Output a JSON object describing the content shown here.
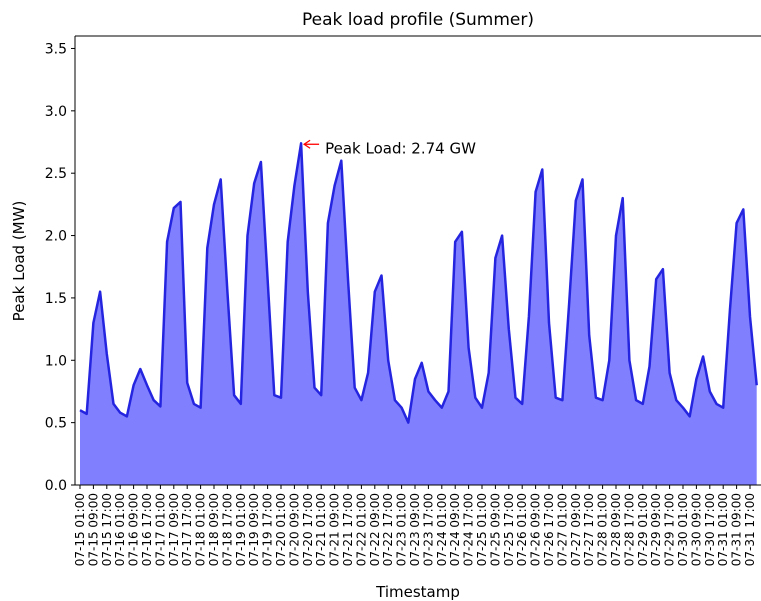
{
  "chart_data": {
    "type": "area",
    "title": "Peak load profile (Summer)",
    "xlabel": "Timestamp",
    "ylabel": "Peak Load (MW)",
    "color": "#2525e0",
    "fill_color": "#8080ff",
    "x": [
      "07-15 01:00",
      "07-15 05:00",
      "07-15 09:00",
      "07-15 13:00",
      "07-15 17:00",
      "07-15 21:00",
      "07-16 01:00",
      "07-16 05:00",
      "07-16 09:00",
      "07-16 13:00",
      "07-16 17:00",
      "07-16 21:00",
      "07-17 01:00",
      "07-17 05:00",
      "07-17 09:00",
      "07-17 13:00",
      "07-17 17:00",
      "07-17 21:00",
      "07-18 01:00",
      "07-18 05:00",
      "07-18 09:00",
      "07-18 13:00",
      "07-18 17:00",
      "07-18 21:00",
      "07-19 01:00",
      "07-19 05:00",
      "07-19 09:00",
      "07-19 13:00",
      "07-19 17:00",
      "07-19 21:00",
      "07-20 01:00",
      "07-20 05:00",
      "07-20 09:00",
      "07-20 13:00",
      "07-20 17:00",
      "07-20 21:00",
      "07-21 01:00",
      "07-21 05:00",
      "07-21 09:00",
      "07-21 13:00",
      "07-21 17:00",
      "07-21 21:00",
      "07-22 01:00",
      "07-22 05:00",
      "07-22 09:00",
      "07-22 13:00",
      "07-22 17:00",
      "07-22 21:00",
      "07-23 01:00",
      "07-23 05:00",
      "07-23 09:00",
      "07-23 13:00",
      "07-23 17:00",
      "07-23 21:00",
      "07-24 01:00",
      "07-24 05:00",
      "07-24 09:00",
      "07-24 13:00",
      "07-24 17:00",
      "07-24 21:00",
      "07-25 01:00",
      "07-25 05:00",
      "07-25 09:00",
      "07-25 13:00",
      "07-25 17:00",
      "07-25 21:00",
      "07-26 01:00",
      "07-26 05:00",
      "07-26 09:00",
      "07-26 13:00",
      "07-26 17:00",
      "07-26 21:00",
      "07-27 01:00",
      "07-27 05:00",
      "07-27 09:00",
      "07-27 13:00",
      "07-27 17:00",
      "07-27 21:00",
      "07-28 01:00",
      "07-28 05:00",
      "07-28 09:00",
      "07-28 13:00",
      "07-28 17:00",
      "07-28 21:00",
      "07-29 01:00",
      "07-29 05:00",
      "07-29 09:00",
      "07-29 13:00",
      "07-29 17:00",
      "07-29 21:00",
      "07-30 01:00",
      "07-30 05:00",
      "07-30 09:00",
      "07-30 13:00",
      "07-30 17:00",
      "07-30 21:00",
      "07-31 01:00",
      "07-31 05:00",
      "07-31 09:00",
      "07-31 13:00",
      "07-31 17:00",
      "07-31 21:00"
    ],
    "values": [
      0.6,
      0.57,
      1.3,
      1.55,
      1.05,
      0.65,
      0.58,
      0.55,
      0.8,
      0.93,
      0.8,
      0.68,
      0.63,
      1.95,
      2.22,
      2.27,
      0.82,
      0.65,
      0.62,
      1.9,
      2.25,
      2.45,
      1.55,
      0.72,
      0.65,
      2.0,
      2.42,
      2.59,
      1.65,
      0.72,
      0.7,
      1.95,
      2.4,
      2.74,
      1.55,
      0.78,
      0.72,
      2.1,
      2.4,
      2.6,
      1.65,
      0.78,
      0.68,
      0.9,
      1.55,
      1.68,
      1.0,
      0.68,
      0.62,
      0.5,
      0.85,
      0.98,
      0.75,
      0.68,
      0.62,
      0.75,
      1.95,
      2.03,
      1.1,
      0.7,
      0.62,
      0.9,
      1.82,
      2.0,
      1.25,
      0.7,
      0.65,
      1.35,
      2.35,
      2.53,
      1.3,
      0.7,
      0.68,
      1.45,
      2.28,
      2.45,
      1.2,
      0.7,
      0.68,
      1.0,
      2.0,
      2.3,
      1.0,
      0.68,
      0.65,
      0.95,
      1.65,
      1.73,
      0.9,
      0.68,
      0.62,
      0.55,
      0.85,
      1.03,
      0.75,
      0.65,
      0.62,
      1.4,
      2.1,
      2.21,
      1.35,
      0.8
    ],
    "xticks": [
      "07-15 01:00",
      "07-15 09:00",
      "07-15 17:00",
      "07-16 01:00",
      "07-16 09:00",
      "07-16 17:00",
      "07-17 01:00",
      "07-17 09:00",
      "07-17 17:00",
      "07-18 01:00",
      "07-18 09:00",
      "07-18 17:00",
      "07-19 01:00",
      "07-19 09:00",
      "07-19 17:00",
      "07-20 01:00",
      "07-20 09:00",
      "07-20 17:00",
      "07-21 01:00",
      "07-21 09:00",
      "07-21 17:00",
      "07-22 01:00",
      "07-22 09:00",
      "07-22 17:00",
      "07-23 01:00",
      "07-23 09:00",
      "07-23 17:00",
      "07-24 01:00",
      "07-24 09:00",
      "07-24 17:00",
      "07-25 01:00",
      "07-25 09:00",
      "07-25 17:00",
      "07-26 01:00",
      "07-26 09:00",
      "07-26 17:00",
      "07-27 01:00",
      "07-27 09:00",
      "07-27 17:00",
      "07-28 01:00",
      "07-28 09:00",
      "07-28 17:00",
      "07-29 01:00",
      "07-29 09:00",
      "07-29 17:00",
      "07-30 01:00",
      "07-30 09:00",
      "07-30 17:00",
      "07-31 01:00",
      "07-31 09:00",
      "07-31 17:00"
    ],
    "ylim": [
      0,
      3.6
    ],
    "yticks": [
      {
        "value": 0,
        "label": "0.0"
      },
      0.5,
      {
        "value": 1,
        "label": "1.0"
      },
      1.5,
      {
        "value": 2,
        "label": "2.0"
      },
      2.5,
      {
        "value": 3,
        "label": "3.0"
      },
      3.5
    ],
    "annotation": {
      "text": "Peak Load: 2.74 GW",
      "x": "07-20 13:00",
      "y": 2.74,
      "color": "#ff0000"
    }
  }
}
